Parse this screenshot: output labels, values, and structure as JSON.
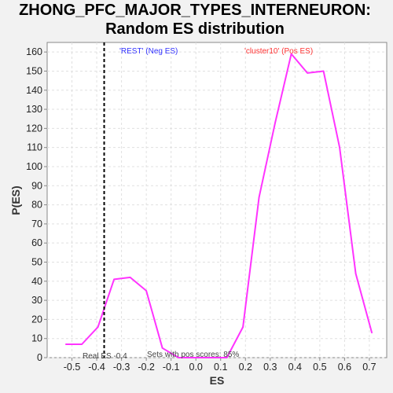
{
  "chart_data": {
    "type": "line",
    "title_line1": "ZHONG_PFC_MAJOR_TYPES_INTERNEURON:",
    "title_line2": "Random ES distribution",
    "xlabel": "ES",
    "ylabel": "P(ES)",
    "xlim": [
      -0.6,
      0.77
    ],
    "ylim": [
      0,
      165
    ],
    "xticks": [
      -0.5,
      -0.4,
      -0.3,
      -0.2,
      -0.1,
      0.0,
      0.1,
      0.2,
      0.3,
      0.4,
      0.5,
      0.6,
      0.7
    ],
    "xtick_labels": [
      "-0.5",
      "-0.4",
      "-0.3",
      "-0.2",
      "-0.1",
      "0.0",
      "0.1",
      "0.2",
      "0.3",
      "0.4",
      "0.5",
      "0.6",
      "0.7"
    ],
    "yticks": [
      0,
      10,
      20,
      30,
      40,
      50,
      60,
      70,
      80,
      90,
      100,
      110,
      120,
      130,
      140,
      150,
      160
    ],
    "grid": true,
    "series": [
      {
        "color": "#ff33ff",
        "x": [
          -0.525,
          -0.46,
          -0.395,
          -0.33,
          -0.265,
          -0.2,
          -0.135,
          -0.07,
          -0.005,
          0.06,
          0.125,
          0.19,
          0.255,
          0.32,
          0.385,
          0.45,
          0.515,
          0.58,
          0.645,
          0.71
        ],
        "y": [
          7,
          7,
          16,
          41,
          42,
          35,
          5,
          0,
          0,
          0,
          0,
          16,
          84,
          123,
          159,
          149,
          150,
          110,
          44,
          13
        ]
      }
    ],
    "real_es": -0.37,
    "annotations": {
      "neg": "'REST' (Neg ES)",
      "pos": "'cluster10' (Pos ES)",
      "real_es": "Real ES -0.4",
      "pos_scores": "Sets with pos scores: 85%"
    },
    "colors": {
      "neg": "#3333ff",
      "pos": "#ff3333",
      "line": "#ff33ff",
      "real_es_line": "#000000"
    }
  }
}
